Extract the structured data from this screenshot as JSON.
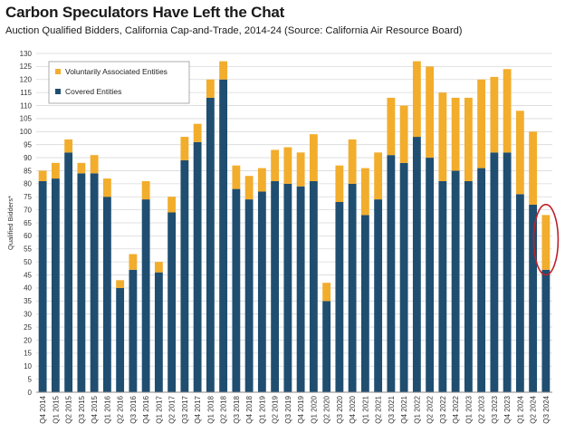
{
  "title": "Carbon Speculators Have Left the Chat",
  "subtitle": "Auction Qualified Bidders, California Cap-and-Trade, 2014-24 (Source: California Air Resource Board)",
  "colors": {
    "covered": "#1f4e70",
    "vae": "#f2ad2c",
    "highlight": "#c0202a",
    "grid": "#d9d9d9"
  },
  "chart_data": {
    "type": "bar",
    "stacked": true,
    "title": "Carbon Speculators Have Left the Chat",
    "subtitle": "Auction Qualified Bidders, California Cap-and-Trade, 2014-24 (Source: California Air Resource Board)",
    "xlabel": "",
    "ylabel": "Qualified Bidders*",
    "ylim": [
      0,
      130
    ],
    "yticks": [
      0,
      5,
      10,
      15,
      20,
      25,
      30,
      35,
      40,
      45,
      50,
      55,
      60,
      65,
      70,
      75,
      80,
      85,
      90,
      95,
      100,
      105,
      110,
      115,
      120,
      125,
      130
    ],
    "grid": true,
    "legend_position": "top-left",
    "categories": [
      "Q4 2014",
      "Q1 2015",
      "Q2 2015",
      "Q3 2015",
      "Q4 2015",
      "Q1 2016",
      "Q2 2016",
      "Q3 2016",
      "Q4 2016",
      "Q1 2017",
      "Q2 2017",
      "Q3 2017",
      "Q4 2017",
      "Q1 2018",
      "Q2 2018",
      "Q3 2018",
      "Q4 2018",
      "Q1 2019",
      "Q2 2019",
      "Q3 2019",
      "Q4 2019",
      "Q1 2020",
      "Q2 2020",
      "Q3 2020",
      "Q4 2020",
      "Q1 2021",
      "Q2 2021",
      "Q3 2021",
      "Q4 2021",
      "Q1 2022",
      "Q2 2022",
      "Q3 2022",
      "Q4 2022",
      "Q1 2023",
      "Q2 2023",
      "Q3 2023",
      "Q4 2023",
      "Q1 2024",
      "Q2 2024",
      "Q3 2024"
    ],
    "series": [
      {
        "name": "Covered Entities",
        "values": [
          81,
          82,
          92,
          84,
          84,
          75,
          40,
          47,
          74,
          46,
          69,
          89,
          96,
          113,
          120,
          78,
          74,
          77,
          81,
          80,
          79,
          81,
          35,
          73,
          80,
          68,
          74,
          91,
          88,
          98,
          90,
          81,
          85,
          81,
          86,
          92,
          92,
          76,
          72,
          47
        ]
      },
      {
        "name": "Voluntarily Associated Entities",
        "values": [
          4,
          6,
          5,
          4,
          7,
          7,
          3,
          6,
          7,
          4,
          6,
          9,
          7,
          7,
          7,
          9,
          9,
          9,
          12,
          14,
          13,
          18,
          7,
          14,
          17,
          18,
          18,
          22,
          22,
          29,
          35,
          34,
          28,
          32,
          34,
          29,
          32,
          32,
          28,
          21
        ]
      }
    ],
    "annotations": [
      {
        "type": "ellipse-highlight",
        "category": "Q3 2024"
      }
    ]
  }
}
